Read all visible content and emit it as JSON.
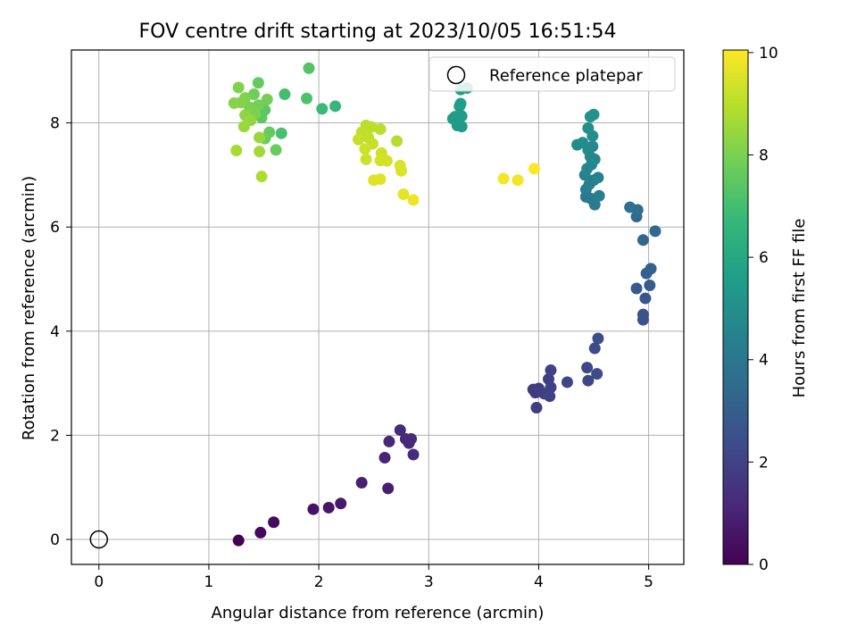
{
  "chart_data": {
    "type": "scatter",
    "title": "FOV centre drift starting at 2023/10/05 16:51:54",
    "xlabel": "Angular distance from reference (arcmin)",
    "ylabel": "Rotation from reference (arcmin)",
    "xlim": [
      -0.25,
      5.32
    ],
    "ylim": [
      -0.48,
      9.4
    ],
    "x_ticks": [
      0,
      1,
      2,
      3,
      4,
      5
    ],
    "y_ticks": [
      0,
      2,
      4,
      6,
      8
    ],
    "grid": true,
    "legend": {
      "placement": "top-right",
      "entries": [
        "Reference platepar"
      ]
    },
    "reference_point": {
      "x": 0,
      "y": 0
    },
    "colorbar": {
      "label": "Hours from first FF file",
      "min": 0,
      "max": 10.05,
      "ticks": [
        0,
        2,
        4,
        6,
        8,
        10
      ],
      "colormap": "viridis",
      "colors": [
        "#440154",
        "#482878",
        "#3e4989",
        "#31688e",
        "#26828e",
        "#1f9e89",
        "#35b779",
        "#6ece58",
        "#b5de2b",
        "#fde725"
      ]
    },
    "series": [
      {
        "points": [
          {
            "x": 1.27,
            "y": -0.02,
            "h": 0.0
          },
          {
            "x": 1.47,
            "y": 0.13,
            "h": 0.2
          },
          {
            "x": 1.59,
            "y": 0.33,
            "h": 0.3
          },
          {
            "x": 1.95,
            "y": 0.58,
            "h": 0.5
          },
          {
            "x": 2.09,
            "y": 0.61,
            "h": 0.6
          },
          {
            "x": 2.2,
            "y": 0.69,
            "h": 0.7
          },
          {
            "x": 2.39,
            "y": 1.09,
            "h": 0.9
          },
          {
            "x": 2.63,
            "y": 0.98,
            "h": 0.9
          },
          {
            "x": 2.6,
            "y": 1.57,
            "h": 1.0
          },
          {
            "x": 2.64,
            "y": 1.88,
            "h": 1.1
          },
          {
            "x": 2.74,
            "y": 2.1,
            "h": 1.2
          },
          {
            "x": 2.79,
            "y": 1.93,
            "h": 1.2
          },
          {
            "x": 2.84,
            "y": 1.93,
            "h": 1.3
          },
          {
            "x": 2.86,
            "y": 1.63,
            "h": 1.3
          },
          {
            "x": 2.82,
            "y": 1.85,
            "h": 1.2
          },
          {
            "x": 3.95,
            "y": 2.88,
            "h": 1.7
          },
          {
            "x": 3.97,
            "y": 2.82,
            "h": 1.7
          },
          {
            "x": 4.0,
            "y": 2.9,
            "h": 1.8
          },
          {
            "x": 3.98,
            "y": 2.53,
            "h": 1.8
          },
          {
            "x": 4.05,
            "y": 2.8,
            "h": 1.9
          },
          {
            "x": 4.09,
            "y": 3.08,
            "h": 1.9
          },
          {
            "x": 4.1,
            "y": 2.75,
            "h": 2.0
          },
          {
            "x": 4.11,
            "y": 3.25,
            "h": 2.0
          },
          {
            "x": 4.11,
            "y": 2.92,
            "h": 2.0
          },
          {
            "x": 4.26,
            "y": 3.02,
            "h": 2.1
          },
          {
            "x": 4.44,
            "y": 3.3,
            "h": 2.2
          },
          {
            "x": 4.45,
            "y": 3.05,
            "h": 2.2
          },
          {
            "x": 4.53,
            "y": 3.18,
            "h": 2.3
          },
          {
            "x": 4.51,
            "y": 3.67,
            "h": 2.3
          },
          {
            "x": 4.54,
            "y": 3.86,
            "h": 2.4
          },
          {
            "x": 4.95,
            "y": 4.22,
            "h": 2.6
          },
          {
            "x": 4.95,
            "y": 4.32,
            "h": 2.6
          },
          {
            "x": 4.97,
            "y": 4.63,
            "h": 2.7
          },
          {
            "x": 4.89,
            "y": 4.82,
            "h": 2.8
          },
          {
            "x": 5.01,
            "y": 4.88,
            "h": 2.9
          },
          {
            "x": 4.98,
            "y": 5.11,
            "h": 3.0
          },
          {
            "x": 5.02,
            "y": 5.2,
            "h": 3.1
          },
          {
            "x": 4.95,
            "y": 5.75,
            "h": 3.3
          },
          {
            "x": 5.06,
            "y": 5.92,
            "h": 3.4
          },
          {
            "x": 4.89,
            "y": 6.2,
            "h": 3.5
          },
          {
            "x": 4.9,
            "y": 6.33,
            "h": 3.6
          },
          {
            "x": 4.83,
            "y": 6.38,
            "h": 3.7
          },
          {
            "x": 4.43,
            "y": 6.58,
            "h": 4.0
          },
          {
            "x": 4.47,
            "y": 6.55,
            "h": 4.1
          },
          {
            "x": 4.51,
            "y": 6.43,
            "h": 4.2
          },
          {
            "x": 4.55,
            "y": 6.6,
            "h": 4.3
          },
          {
            "x": 4.43,
            "y": 6.72,
            "h": 4.3
          },
          {
            "x": 4.46,
            "y": 6.82,
            "h": 4.4
          },
          {
            "x": 4.5,
            "y": 6.9,
            "h": 4.4
          },
          {
            "x": 4.54,
            "y": 6.95,
            "h": 4.5
          },
          {
            "x": 4.42,
            "y": 7.0,
            "h": 4.5
          },
          {
            "x": 4.44,
            "y": 7.12,
            "h": 4.6
          },
          {
            "x": 4.48,
            "y": 7.2,
            "h": 4.6
          },
          {
            "x": 4.47,
            "y": 7.35,
            "h": 4.7
          },
          {
            "x": 4.51,
            "y": 7.3,
            "h": 4.7
          },
          {
            "x": 4.45,
            "y": 7.48,
            "h": 4.8
          },
          {
            "x": 4.49,
            "y": 7.55,
            "h": 4.8
          },
          {
            "x": 4.4,
            "y": 7.62,
            "h": 4.9
          },
          {
            "x": 4.35,
            "y": 7.58,
            "h": 4.9
          },
          {
            "x": 4.49,
            "y": 7.75,
            "h": 5.0
          },
          {
            "x": 4.45,
            "y": 7.9,
            "h": 5.0
          },
          {
            "x": 4.47,
            "y": 8.12,
            "h": 5.1
          },
          {
            "x": 4.5,
            "y": 8.16,
            "h": 5.1
          },
          {
            "x": 3.3,
            "y": 7.93,
            "h": 5.4
          },
          {
            "x": 3.26,
            "y": 7.95,
            "h": 5.4
          },
          {
            "x": 3.22,
            "y": 8.08,
            "h": 5.5
          },
          {
            "x": 3.24,
            "y": 8.12,
            "h": 5.5
          },
          {
            "x": 3.3,
            "y": 8.13,
            "h": 5.5
          },
          {
            "x": 3.28,
            "y": 8.32,
            "h": 5.6
          },
          {
            "x": 3.29,
            "y": 8.37,
            "h": 5.6
          },
          {
            "x": 3.29,
            "y": 8.64,
            "h": 5.7
          },
          {
            "x": 3.35,
            "y": 8.67,
            "h": 5.7
          },
          {
            "x": 1.69,
            "y": 8.55,
            "h": 7.0
          },
          {
            "x": 2.15,
            "y": 8.32,
            "h": 6.7
          },
          {
            "x": 2.03,
            "y": 8.27,
            "h": 6.8
          },
          {
            "x": 1.66,
            "y": 7.8,
            "h": 7.1
          },
          {
            "x": 1.89,
            "y": 8.47,
            "h": 7.2
          },
          {
            "x": 1.91,
            "y": 9.05,
            "h": 7.3
          },
          {
            "x": 1.51,
            "y": 8.25,
            "h": 7.5
          },
          {
            "x": 1.48,
            "y": 8.1,
            "h": 7.5
          },
          {
            "x": 1.55,
            "y": 7.82,
            "h": 7.6
          },
          {
            "x": 1.51,
            "y": 7.7,
            "h": 7.7
          },
          {
            "x": 1.61,
            "y": 7.48,
            "h": 7.7
          },
          {
            "x": 1.45,
            "y": 8.77,
            "h": 7.6
          },
          {
            "x": 1.41,
            "y": 8.55,
            "h": 7.8
          },
          {
            "x": 1.53,
            "y": 8.45,
            "h": 7.9
          },
          {
            "x": 1.45,
            "y": 8.34,
            "h": 7.9
          },
          {
            "x": 1.37,
            "y": 8.3,
            "h": 8.0
          },
          {
            "x": 1.42,
            "y": 8.18,
            "h": 8.0
          },
          {
            "x": 1.27,
            "y": 8.68,
            "h": 8.1
          },
          {
            "x": 1.33,
            "y": 8.48,
            "h": 8.1
          },
          {
            "x": 1.29,
            "y": 8.39,
            "h": 8.2
          },
          {
            "x": 1.23,
            "y": 8.38,
            "h": 8.2
          },
          {
            "x": 1.33,
            "y": 8.15,
            "h": 8.3
          },
          {
            "x": 1.38,
            "y": 8.05,
            "h": 8.4
          },
          {
            "x": 1.32,
            "y": 7.93,
            "h": 8.5
          },
          {
            "x": 1.46,
            "y": 7.72,
            "h": 8.5
          },
          {
            "x": 1.46,
            "y": 7.45,
            "h": 8.6
          },
          {
            "x": 1.25,
            "y": 7.47,
            "h": 8.7
          },
          {
            "x": 1.48,
            "y": 6.97,
            "h": 8.8
          },
          {
            "x": 2.71,
            "y": 7.65,
            "h": 8.9
          },
          {
            "x": 2.56,
            "y": 7.88,
            "h": 9.0
          },
          {
            "x": 2.43,
            "y": 7.95,
            "h": 9.0
          },
          {
            "x": 2.48,
            "y": 7.92,
            "h": 9.0
          },
          {
            "x": 2.39,
            "y": 7.82,
            "h": 9.1
          },
          {
            "x": 2.45,
            "y": 7.72,
            "h": 9.1
          },
          {
            "x": 2.36,
            "y": 7.68,
            "h": 9.2
          },
          {
            "x": 2.49,
            "y": 7.6,
            "h": 9.2
          },
          {
            "x": 2.42,
            "y": 7.5,
            "h": 9.3
          },
          {
            "x": 2.57,
            "y": 7.42,
            "h": 9.3
          },
          {
            "x": 2.43,
            "y": 7.3,
            "h": 9.3
          },
          {
            "x": 2.56,
            "y": 7.28,
            "h": 9.4
          },
          {
            "x": 2.62,
            "y": 7.27,
            "h": 9.4
          },
          {
            "x": 2.74,
            "y": 7.18,
            "h": 9.5
          },
          {
            "x": 2.75,
            "y": 7.08,
            "h": 9.5
          },
          {
            "x": 2.5,
            "y": 6.9,
            "h": 9.6
          },
          {
            "x": 2.56,
            "y": 6.92,
            "h": 9.6
          },
          {
            "x": 2.77,
            "y": 6.63,
            "h": 9.7
          },
          {
            "x": 2.86,
            "y": 6.52,
            "h": 9.8
          },
          {
            "x": 3.68,
            "y": 6.93,
            "h": 9.9
          },
          {
            "x": 3.81,
            "y": 6.9,
            "h": 9.9
          },
          {
            "x": 3.96,
            "y": 7.12,
            "h": 10.0
          }
        ]
      }
    ]
  }
}
